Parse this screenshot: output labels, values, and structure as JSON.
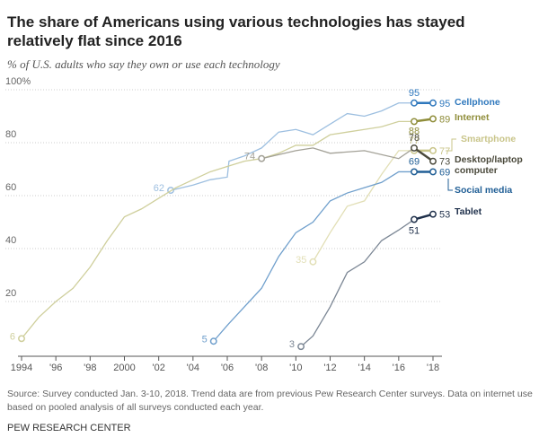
{
  "chart_data": {
    "type": "line",
    "title": "The share of Americans using various technologies has stayed relatively flat since 2016",
    "subtitle": "% of U.S. adults who say they own or use each technology",
    "note": "Source: Survey conducted Jan. 3-10, 2018. Trend data are from previous Pew Research Center surveys. Data on internet use based on pooled analysis of all surveys conducted each year.",
    "credit": "PEW RESEARCH CENTER",
    "xlim": [
      1994,
      2018
    ],
    "xticks": [
      {
        "value": 1994,
        "label": "1994"
      },
      {
        "value": 1996,
        "label": "'96"
      },
      {
        "value": 1998,
        "label": "'98"
      },
      {
        "value": 2000,
        "label": "2000"
      },
      {
        "value": 2002,
        "label": "'02"
      },
      {
        "value": 2004,
        "label": "'04"
      },
      {
        "value": 2006,
        "label": "'06"
      },
      {
        "value": 2008,
        "label": "'08"
      },
      {
        "value": 2010,
        "label": "'10"
      },
      {
        "value": 2012,
        "label": "'12"
      },
      {
        "value": 2014,
        "label": "'14"
      },
      {
        "value": 2016,
        "label": "'16"
      },
      {
        "value": 2018,
        "label": "'18"
      }
    ],
    "ylim": [
      0,
      100
    ],
    "yticks": [
      20,
      40,
      60,
      80,
      {
        "value": 100,
        "label": "100%"
      }
    ],
    "grid": true,
    "series": [
      {
        "name": "Cellphone",
        "color": "#9dbfe0",
        "label_color": "#2f78bd",
        "x": [
          2002.7,
          2004,
          2005,
          2006,
          2006.1,
          2007,
          2008,
          2009,
          2010,
          2011,
          2012,
          2013,
          2014,
          2015,
          2016,
          2016.9,
          2018
        ],
        "values": [
          62,
          64,
          66,
          67,
          73,
          75,
          78,
          84,
          85,
          83,
          87,
          91,
          90,
          92,
          95,
          95,
          95
        ]
      },
      {
        "name": "Internet",
        "color": "#cfcf9c",
        "label_color": "#8f8d3a",
        "x": [
          1994,
          1995,
          1996,
          1997,
          1998,
          1999,
          2000,
          2001,
          2002,
          2003,
          2004,
          2005,
          2006,
          2007,
          2008,
          2009,
          2010,
          2011,
          2012,
          2013,
          2014,
          2015,
          2016,
          2016.9,
          2018
        ],
        "values": [
          6,
          14,
          20,
          25,
          33,
          43,
          52,
          55,
          59,
          63,
          66,
          69,
          71,
          73,
          74,
          76,
          79,
          79,
          83,
          84,
          85,
          86,
          88,
          88,
          89
        ]
      },
      {
        "name": "Smartphone",
        "color": "#e2dfb6",
        "label_color": "#c9c58a",
        "x": [
          2011,
          2012,
          2013,
          2014,
          2015,
          2016,
          2016.9,
          2018
        ],
        "values": [
          35,
          46,
          56,
          58,
          68,
          77,
          77,
          77
        ]
      },
      {
        "name": "Desktop/laptop computer",
        "color": "#a3a197",
        "label_color": "#4b4a3c",
        "x": [
          2008,
          2010,
          2011,
          2012,
          2014,
          2016,
          2016.9,
          2018
        ],
        "values": [
          74,
          77,
          78,
          76,
          77,
          74,
          78,
          73
        ]
      },
      {
        "name": "Social media",
        "color": "#6f9fcc",
        "label_color": "#215f96",
        "x": [
          2005.2,
          2006,
          2008,
          2009,
          2010,
          2011,
          2012,
          2013,
          2014,
          2015,
          2016,
          2016.9,
          2018
        ],
        "values": [
          5,
          11,
          25,
          37,
          46,
          50,
          58,
          61,
          63,
          65,
          69,
          69,
          69
        ]
      },
      {
        "name": "Tablet",
        "color": "#7c8795",
        "label_color": "#1e2f4a",
        "x": [
          2010.3,
          2011,
          2012,
          2013,
          2014,
          2015,
          2016,
          2016.9,
          2018
        ],
        "values": [
          3,
          7,
          18,
          31,
          35,
          43,
          47,
          51,
          53
        ]
      }
    ]
  }
}
